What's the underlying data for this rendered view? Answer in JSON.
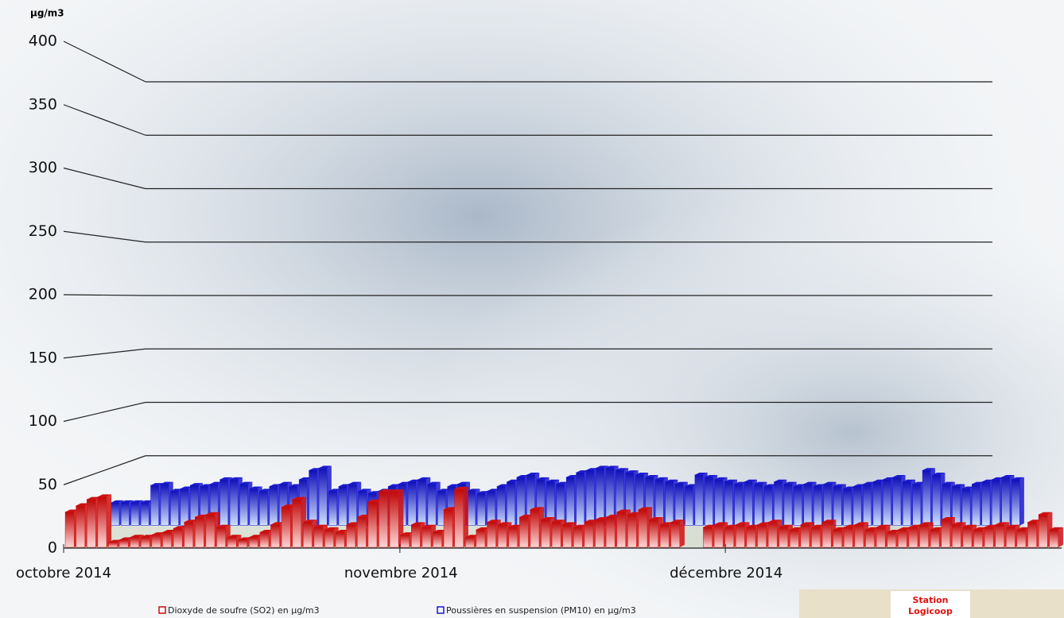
{
  "chart_data": {
    "type": "bar3d",
    "y_unit": "µg/m3",
    "categories": [
      "octobre 2014",
      null,
      null,
      null,
      null,
      null,
      null,
      null,
      null,
      null,
      null,
      null,
      null,
      null,
      null,
      null,
      null,
      null,
      null,
      null,
      null,
      null,
      null,
      null,
      null,
      null,
      null,
      null,
      null,
      null,
      null,
      "novembre 2014",
      null,
      null,
      null,
      null,
      null,
      null,
      null,
      null,
      null,
      null,
      null,
      null,
      null,
      null,
      null,
      null,
      null,
      null,
      null,
      null,
      null,
      null,
      null,
      null,
      null,
      null,
      null,
      null,
      null,
      "décembre 2014",
      null,
      null,
      null,
      null,
      null,
      null,
      null,
      null,
      null,
      null,
      null,
      null,
      null,
      null,
      null,
      null,
      null,
      null,
      null,
      null,
      null,
      null,
      null,
      null,
      null,
      null,
      null,
      null,
      null,
      null
    ],
    "series": [
      {
        "name": "Dioxyde de soufre (SO2) en µg/m3",
        "color": "#d01010",
        "values": [
          28,
          33,
          38,
          40,
          4,
          6,
          8,
          8,
          10,
          12,
          15,
          20,
          24,
          26,
          16,
          8,
          6,
          8,
          12,
          18,
          32,
          38,
          20,
          16,
          14,
          12,
          18,
          24,
          36,
          44,
          44,
          10,
          18,
          16,
          12,
          30,
          46,
          8,
          14,
          20,
          18,
          16,
          24,
          30,
          22,
          20,
          18,
          16,
          20,
          22,
          24,
          28,
          26,
          30,
          22,
          18,
          20,
          null,
          null,
          16,
          18,
          16,
          18,
          16,
          18,
          20,
          16,
          14,
          18,
          16,
          20,
          14,
          16,
          18,
          14,
          16,
          12,
          14,
          16,
          18,
          14,
          22,
          18,
          16,
          14,
          16,
          18,
          16,
          14,
          20,
          26,
          14
        ]
      },
      {
        "name": "Poussières en suspension (PM10) en µg/m3",
        "color": "#1a1ad0",
        "values": [
          20,
          20,
          20,
          20,
          35,
          36,
          30,
          32,
          35,
          34,
          36,
          40,
          40,
          36,
          32,
          30,
          34,
          36,
          34,
          40,
          48,
          50,
          30,
          34,
          36,
          30,
          28,
          30,
          34,
          36,
          38,
          40,
          36,
          30,
          34,
          36,
          30,
          28,
          30,
          34,
          38,
          42,
          44,
          40,
          38,
          36,
          42,
          46,
          48,
          50,
          50,
          48,
          46,
          44,
          42,
          40,
          38,
          36,
          34,
          44,
          42,
          40,
          38,
          36,
          38,
          36,
          34,
          38,
          36,
          34,
          36,
          34,
          36,
          34,
          32,
          34,
          36,
          38,
          40,
          42,
          38,
          36,
          48,
          44,
          36,
          34,
          32,
          36,
          38,
          40,
          42,
          40
        ]
      }
    ],
    "ylim": [
      0,
      400
    ],
    "yticks": [
      0,
      50,
      100,
      150,
      200,
      250,
      300,
      350,
      400
    ],
    "grid": true,
    "logo": [
      "Station",
      "Logicoop"
    ]
  }
}
